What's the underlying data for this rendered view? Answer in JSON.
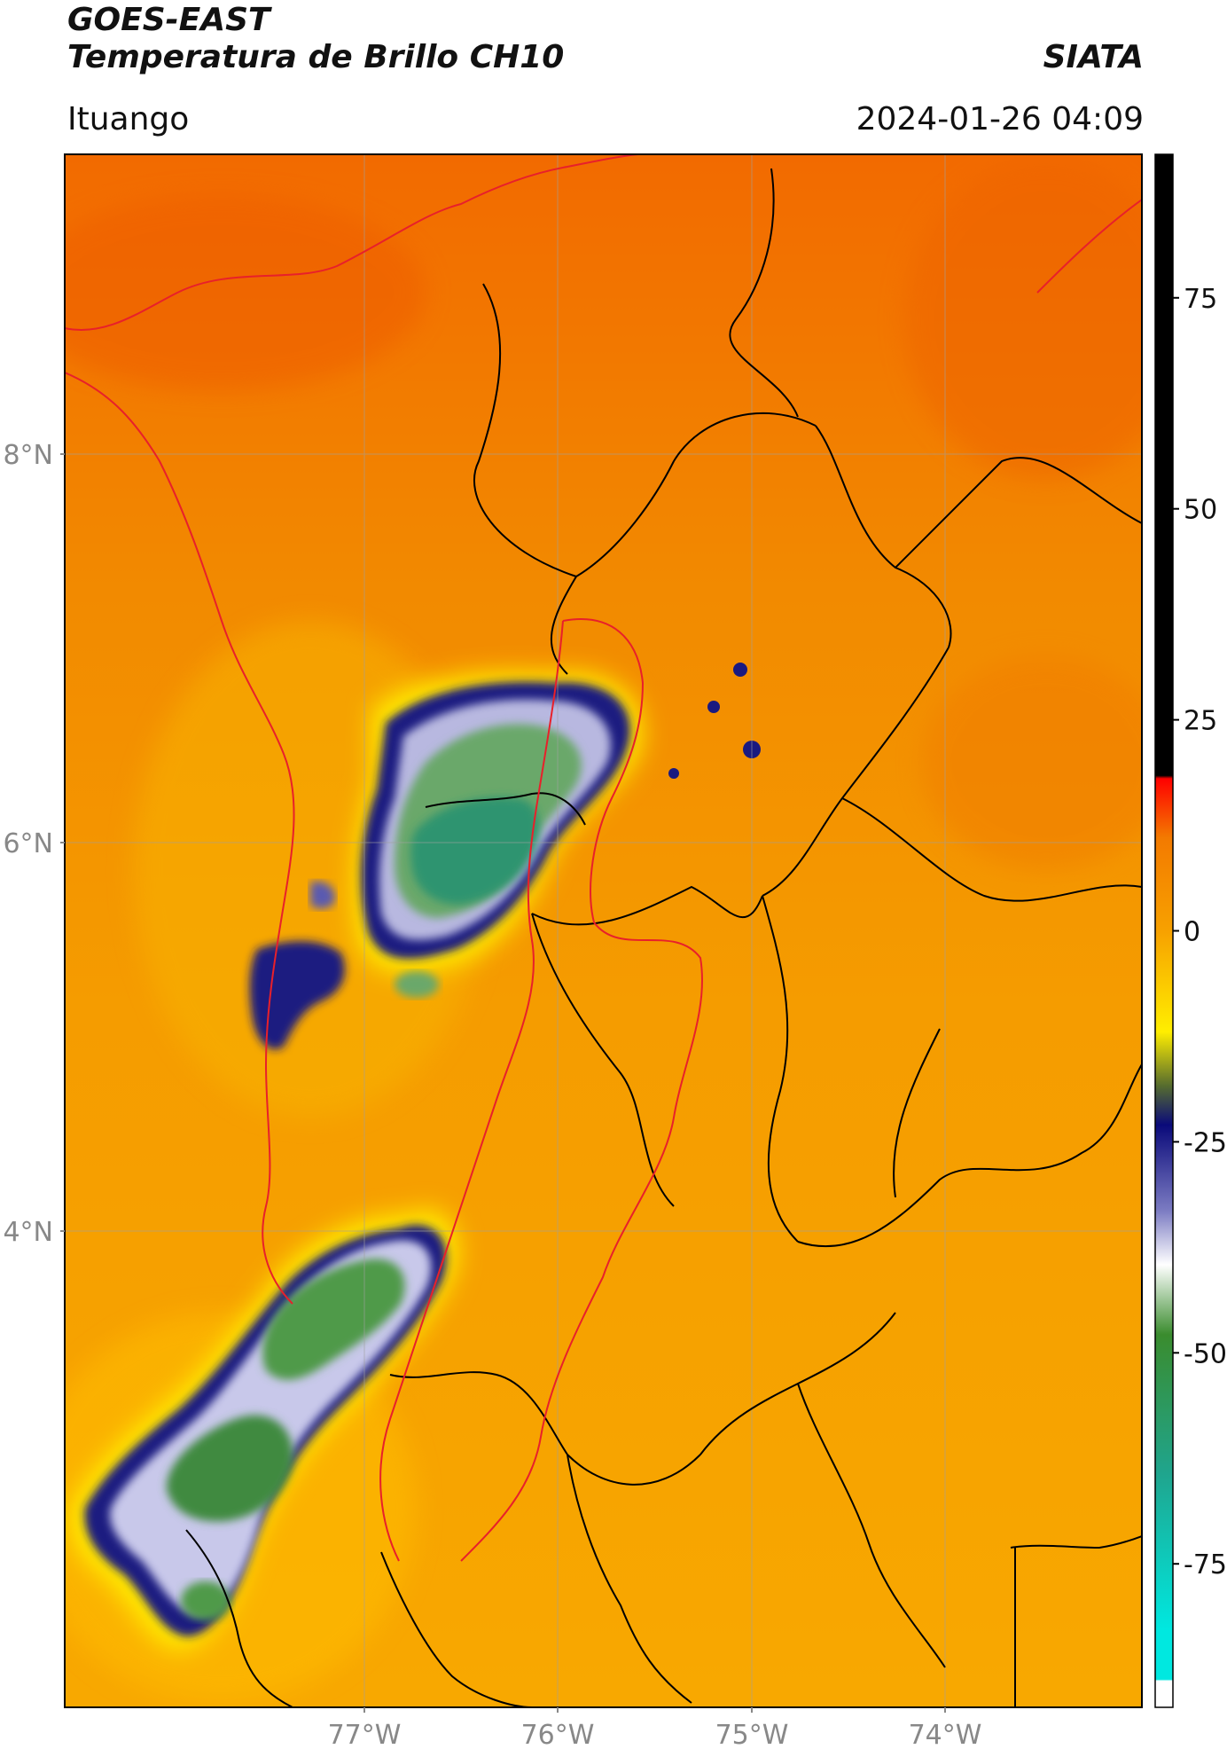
{
  "header": {
    "satellite": "GOES-EAST",
    "product": "Temperatura de Brillo CH10",
    "agency": "SIATA",
    "location": "Ituango",
    "datetime": "2024-01-26 04:09"
  },
  "map": {
    "lat_ticks": [
      "8°N",
      "6°N",
      "4°N"
    ],
    "lon_ticks": [
      "77°W",
      "76°W",
      "75°W",
      "74°W"
    ],
    "lon_range": [
      -78.55,
      -72.95
    ],
    "lat_range": [
      1.8,
      9.55
    ],
    "colors": {
      "warm": "#f39a00",
      "hot": "#f26d00",
      "cold_edge": "#ffee00",
      "very_cold": "#1a1a80",
      "coldest": "#2f8a3c",
      "border_national": "#e8202a",
      "border_admin": "#000000"
    }
  },
  "colorbar": {
    "ticks": [
      "75",
      "50",
      "25",
      "0",
      "-25",
      "-50",
      "-75"
    ],
    "tick_values": [
      75,
      50,
      25,
      0,
      -25,
      -50,
      -75
    ],
    "range": [
      -92,
      92
    ]
  }
}
